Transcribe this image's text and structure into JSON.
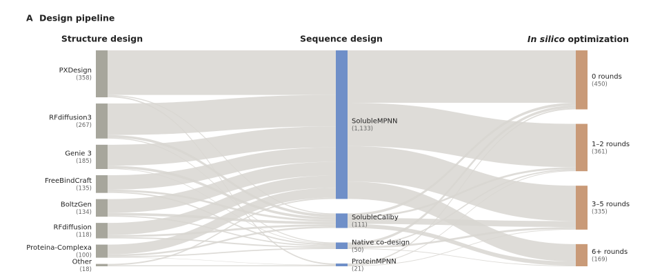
{
  "chart_data": {
    "type": "sankey",
    "panel_label": "A",
    "title": "Design pipeline",
    "link_color": "#d8d6d1",
    "columns": [
      {
        "title": "Structure design",
        "color": "#a7a69c",
        "nodes": [
          {
            "name": "PXDesign",
            "value": 358,
            "value_label": "(358)"
          },
          {
            "name": "RFdiffusion3",
            "value": 267,
            "value_label": "(267)"
          },
          {
            "name": "Genie 3",
            "value": 185,
            "value_label": "(185)"
          },
          {
            "name": "FreeBindCraft",
            "value": 135,
            "value_label": "(135)"
          },
          {
            "name": "BoltzGen",
            "value": 134,
            "value_label": "(134)"
          },
          {
            "name": "RFdiffusion",
            "value": 118,
            "value_label": "(118)"
          },
          {
            "name": "Proteina-Complexa",
            "value": 100,
            "value_label": "(100)"
          },
          {
            "name": "Other",
            "value": 18,
            "value_label": "(18)"
          }
        ]
      },
      {
        "title": "Sequence design",
        "color": "#6f8fc8",
        "nodes": [
          {
            "name": "SolubleMPNN",
            "value": 1133,
            "value_label": "(1,133)"
          },
          {
            "name": "SolubleCaliby",
            "value": 111,
            "value_label": "(111)"
          },
          {
            "name": "Native co-design",
            "value": 50,
            "value_label": "(50)"
          },
          {
            "name": "ProteinMPNN",
            "value": 21,
            "value_label": "(21)"
          }
        ]
      },
      {
        "title_italic": "In silico",
        "title": "optimization",
        "color": "#c99a78",
        "nodes": [
          {
            "name": "0 rounds",
            "value": 450,
            "value_label": "(450)"
          },
          {
            "name": "1–2 rounds",
            "value": 361,
            "value_label": "(361)"
          },
          {
            "name": "3–5 rounds",
            "value": 335,
            "value_label": "(335)"
          },
          {
            "name": "6+ rounds",
            "value": 169,
            "value_label": "(169)"
          }
        ]
      }
    ],
    "links": [
      {
        "source": "PXDesign",
        "target": "SolubleMPNN",
        "value": 340
      },
      {
        "source": "PXDesign",
        "target": "SolubleCaliby",
        "value": 8
      },
      {
        "source": "PXDesign",
        "target": "ProteinMPNN",
        "value": 10
      },
      {
        "source": "RFdiffusion3",
        "target": "SolubleMPNN",
        "value": 240
      },
      {
        "source": "RFdiffusion3",
        "target": "SolubleCaliby",
        "value": 20
      },
      {
        "source": "RFdiffusion3",
        "target": "Native co-design",
        "value": 7
      },
      {
        "source": "Genie 3",
        "target": "SolubleMPNN",
        "value": 160
      },
      {
        "source": "Genie 3",
        "target": "SolubleCaliby",
        "value": 20
      },
      {
        "source": "Genie 3",
        "target": "Native co-design",
        "value": 5
      },
      {
        "source": "FreeBindCraft",
        "target": "SolubleMPNN",
        "value": 110
      },
      {
        "source": "FreeBindCraft",
        "target": "SolubleCaliby",
        "value": 15
      },
      {
        "source": "FreeBindCraft",
        "target": "Native co-design",
        "value": 10
      },
      {
        "source": "BoltzGen",
        "target": "SolubleMPNN",
        "value": 105
      },
      {
        "source": "BoltzGen",
        "target": "SolubleCaliby",
        "value": 20
      },
      {
        "source": "BoltzGen",
        "target": "Native co-design",
        "value": 9
      },
      {
        "source": "RFdiffusion",
        "target": "SolubleMPNN",
        "value": 93
      },
      {
        "source": "RFdiffusion",
        "target": "SolubleCaliby",
        "value": 15
      },
      {
        "source": "RFdiffusion",
        "target": "Native co-design",
        "value": 10
      },
      {
        "source": "Proteina-Complexa",
        "target": "SolubleMPNN",
        "value": 75
      },
      {
        "source": "Proteina-Complexa",
        "target": "SolubleCaliby",
        "value": 13
      },
      {
        "source": "Proteina-Complexa",
        "target": "Native co-design",
        "value": 9
      },
      {
        "source": "Proteina-Complexa",
        "target": "ProteinMPNN",
        "value": 3
      },
      {
        "source": "Other",
        "target": "SolubleMPNN",
        "value": 10
      },
      {
        "source": "Other",
        "target": "ProteinMPNN",
        "value": 8
      },
      {
        "source": "SolubleMPNN",
        "target": "0 rounds",
        "value": 400
      },
      {
        "source": "SolubleMPNN",
        "target": "1–2 rounds",
        "value": 330
      },
      {
        "source": "SolubleMPNN",
        "target": "3–5 rounds",
        "value": 270
      },
      {
        "source": "SolubleMPNN",
        "target": "6+ rounds",
        "value": 133
      },
      {
        "source": "SolubleCaliby",
        "target": "0 rounds",
        "value": 20
      },
      {
        "source": "SolubleCaliby",
        "target": "1–2 rounds",
        "value": 15
      },
      {
        "source": "SolubleCaliby",
        "target": "3–5 rounds",
        "value": 45
      },
      {
        "source": "SolubleCaliby",
        "target": "6+ rounds",
        "value": 31
      },
      {
        "source": "Native co-design",
        "target": "0 rounds",
        "value": 20
      },
      {
        "source": "Native co-design",
        "target": "1–2 rounds",
        "value": 10
      },
      {
        "source": "Native co-design",
        "target": "3–5 rounds",
        "value": 15
      },
      {
        "source": "Native co-design",
        "target": "6+ rounds",
        "value": 5
      },
      {
        "source": "ProteinMPNN",
        "target": "0 rounds",
        "value": 10
      },
      {
        "source": "ProteinMPNN",
        "target": "1–2 rounds",
        "value": 6
      },
      {
        "source": "ProteinMPNN",
        "target": "3–5 rounds",
        "value": 5
      }
    ]
  }
}
